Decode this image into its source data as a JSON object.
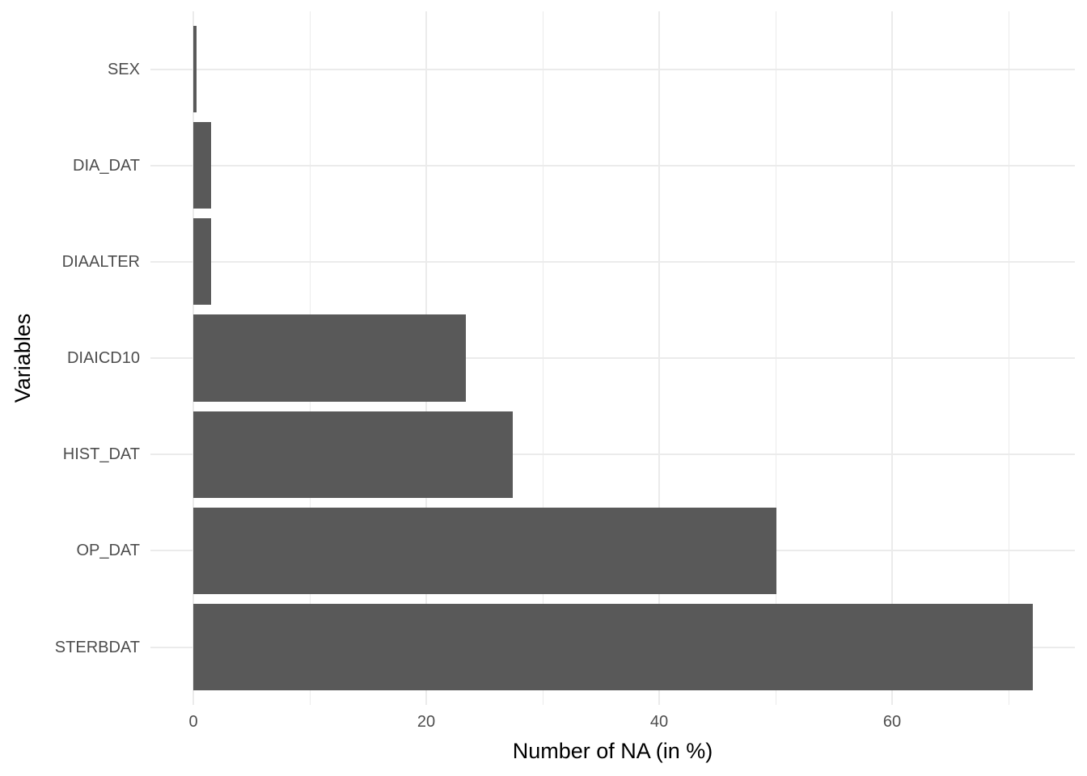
{
  "chart_data": {
    "type": "bar",
    "orientation": "horizontal",
    "title": "",
    "xlabel": "Number of NA (in %)",
    "ylabel": "Variables",
    "categories_top_to_bottom": [
      "SEX",
      "DIA_DAT",
      "DIAALTER",
      "DIAICD10",
      "HIST_DAT",
      "OP_DAT",
      "STERBDAT"
    ],
    "values": [
      0.25,
      1.5,
      1.5,
      23.4,
      27.4,
      50.1,
      72.1
    ],
    "x_major_ticks": [
      0,
      20,
      40,
      60
    ],
    "x_major_tick_labels": [
      "0",
      "20",
      "40",
      "60"
    ],
    "x_minor_gridlines": [
      10,
      30,
      50,
      70
    ],
    "xlim": [
      -3.65,
      75.8
    ],
    "grid": "on",
    "legend": "none",
    "colors": {
      "bar_fill": "#595959",
      "grid_major": "#EBEBEB",
      "grid_minor": "#EBEBEB",
      "tick_label": "#4D4D4D",
      "axis_title": "#000000",
      "background": "#FFFFFF"
    }
  }
}
